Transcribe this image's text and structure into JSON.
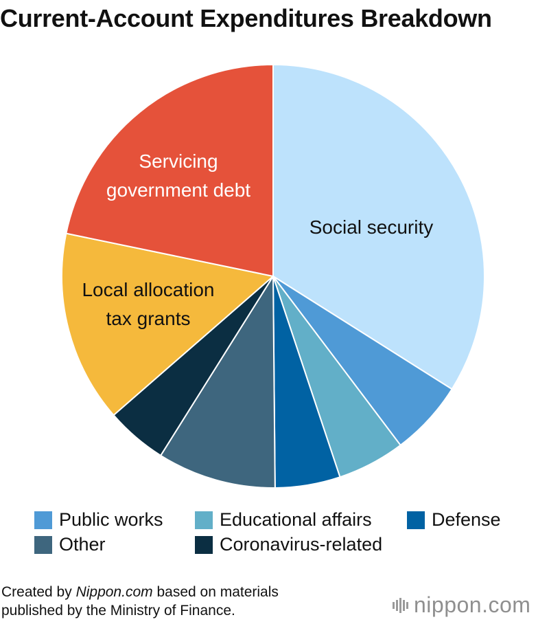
{
  "chart_data": {
    "type": "pie",
    "title": "Current-Account Expenditures Breakdown",
    "slices": [
      {
        "key": "social",
        "name": "Social security",
        "value": 34.8,
        "color": "#bde2fc",
        "label_color": "#111111",
        "label_lines": [
          "Social security"
        ]
      },
      {
        "key": "public",
        "name": "Public works",
        "value": 5.9,
        "color": "#4f9ad6",
        "in_legend": true
      },
      {
        "key": "education",
        "name": "Educational affairs",
        "value": 5.3,
        "color": "#62afc8",
        "in_legend": true
      },
      {
        "key": "defense",
        "name": "Defense",
        "value": 5.1,
        "color": "#0162a3",
        "in_legend": true
      },
      {
        "key": "other",
        "name": "Other",
        "value": 9.3,
        "color": "#3e667e",
        "in_legend": true
      },
      {
        "key": "corona",
        "name": "Coronavirus-related",
        "value": 4.8,
        "color": "#0b2e42",
        "in_legend": true
      },
      {
        "key": "local",
        "name": "Local allocation tax grants",
        "value": 15.0,
        "color": "#f5b93c",
        "label_color": "#111111",
        "label_lines": [
          "Local allocation",
          "tax grants"
        ]
      },
      {
        "key": "debt",
        "name": "Servicing government debt",
        "value": 22.3,
        "color": "#e5523a",
        "label_color": "#ffffff",
        "label_lines": [
          "Servicing",
          "government debt"
        ]
      }
    ]
  },
  "credit": {
    "prefix": "Created by ",
    "source_italic": "Nippon.com",
    "suffix": " based on materials",
    "line2": "published by the Ministry of Finance."
  },
  "logo": {
    "text": "nippon.com",
    "color": "#8f8f8f"
  }
}
